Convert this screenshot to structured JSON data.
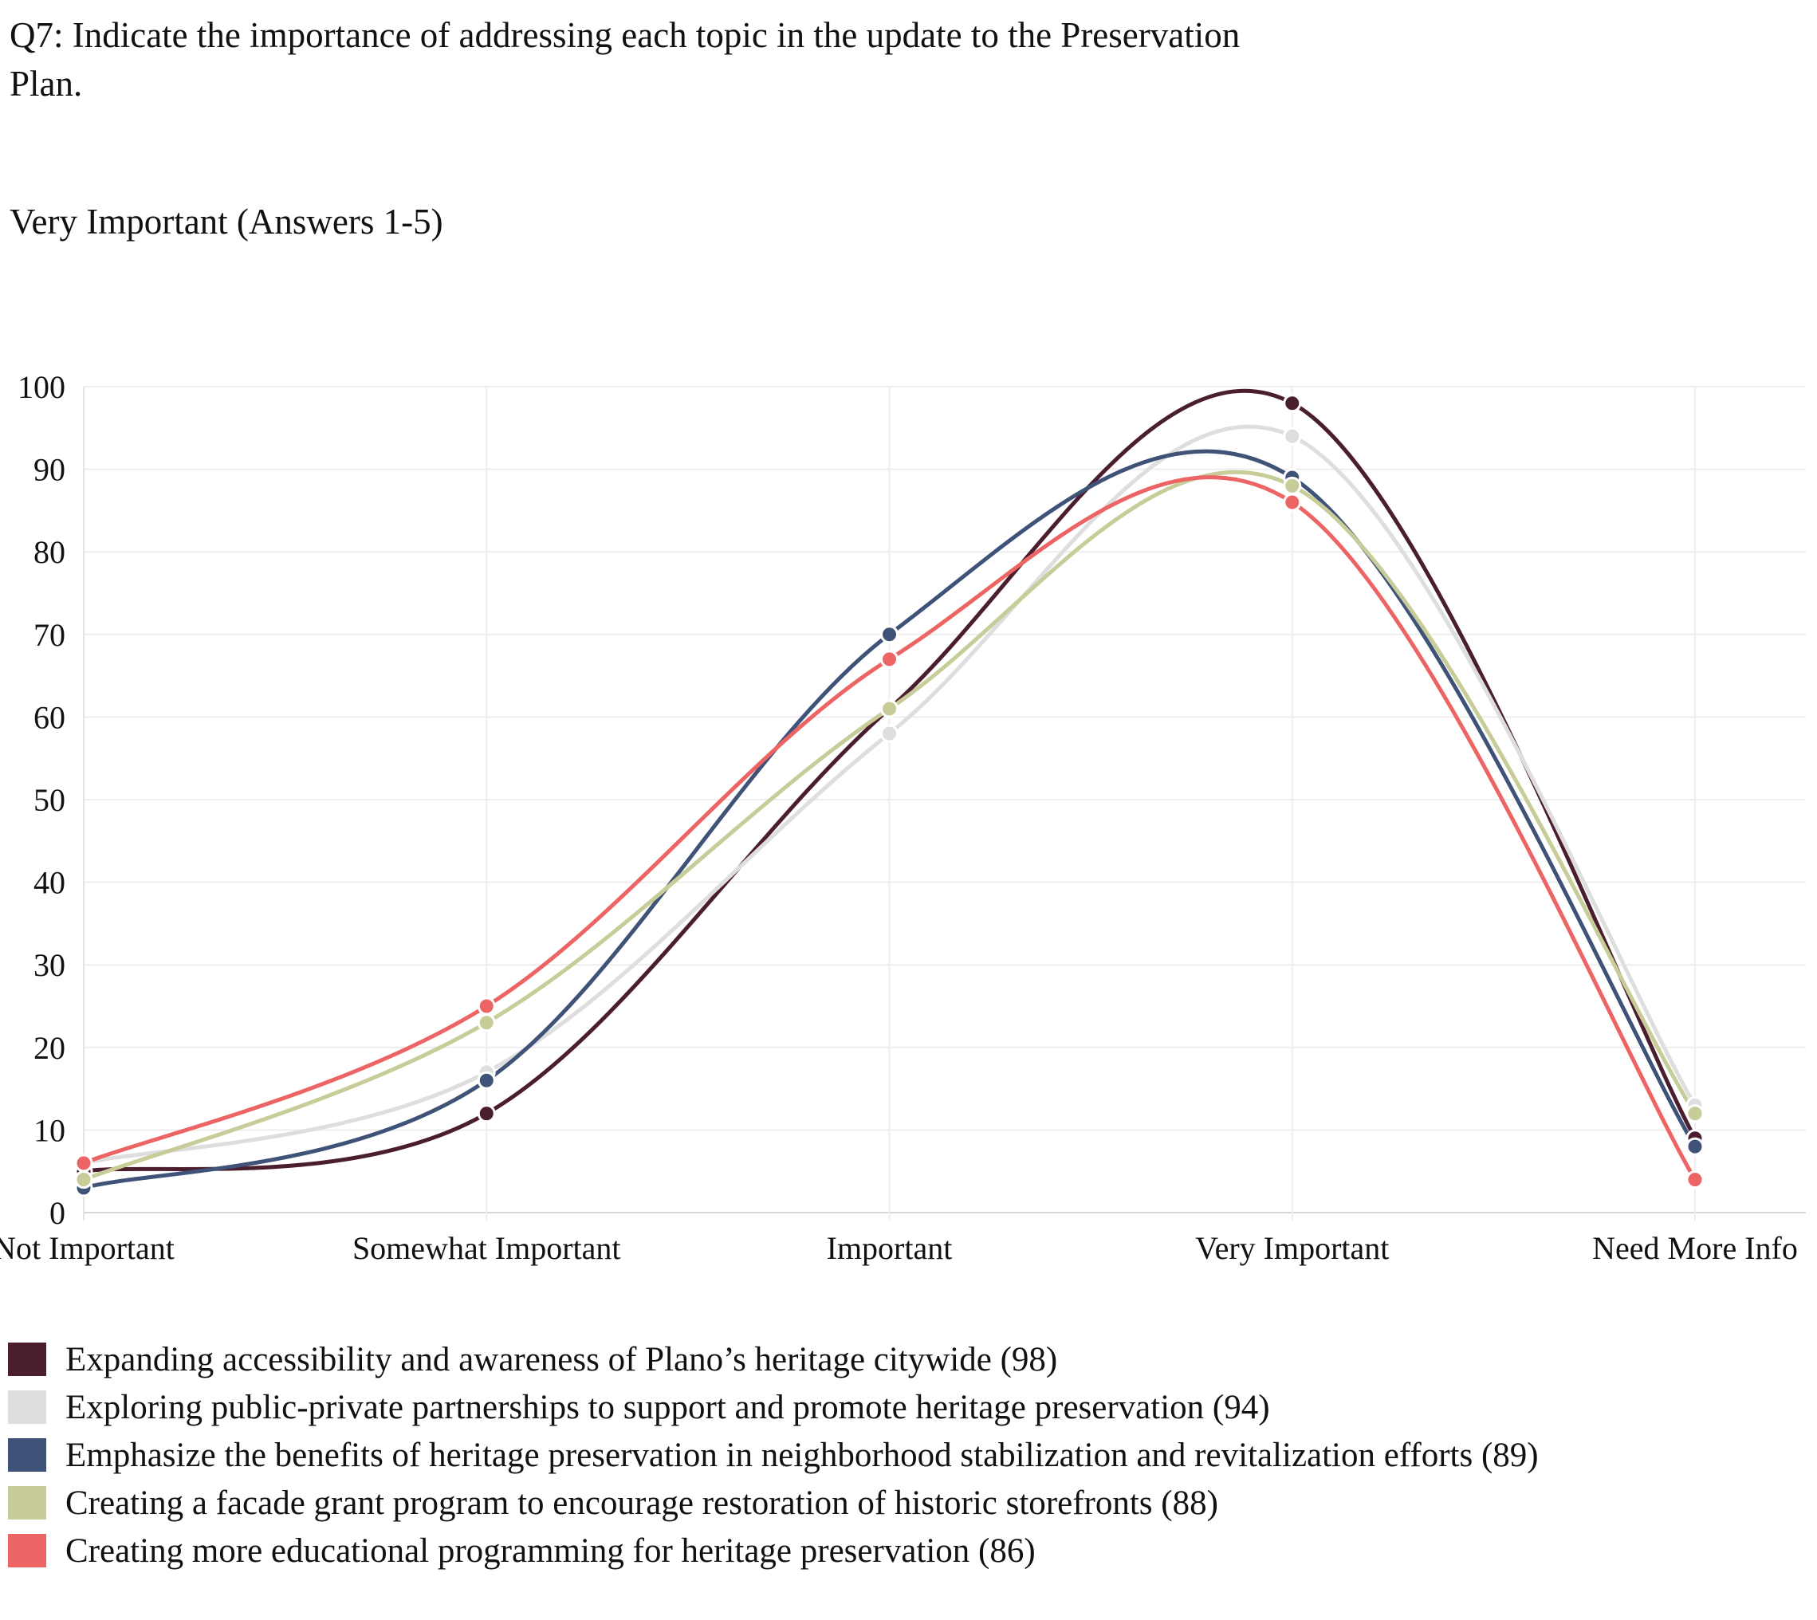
{
  "title": "Q7: Indicate the importance of addressing each topic in the update to the Preservation Plan.",
  "subtitle": "Very Important (Answers 1-5)",
  "chart_data": {
    "type": "line",
    "title": "Q7: Indicate the importance of addressing each topic in the update to the Preservation Plan.",
    "subtitle": "Very Important (Answers 1-5)",
    "categories": [
      "Not Important",
      "Somewhat Important",
      "Important",
      "Very Important",
      "Need More Info"
    ],
    "ylim": [
      0,
      100
    ],
    "yticks": [
      0,
      10,
      20,
      30,
      40,
      50,
      60,
      70,
      80,
      90,
      100
    ],
    "grid": true,
    "legend_position": "bottom-left",
    "series": [
      {
        "name": "Expanding accessibility and awareness of Plano’s heritage citywide (98)",
        "color": "#4a1e2e",
        "values": [
          5,
          12,
          61,
          98,
          9
        ]
      },
      {
        "name": "Exploring public-private partnerships to support and promote heritage preservation (94)",
        "color": "#dedede",
        "values": [
          6,
          17,
          58,
          94,
          13
        ]
      },
      {
        "name": "Emphasize the benefits of heritage preservation in neighborhood stabilization and revitalization efforts (89)",
        "color": "#3f5278",
        "values": [
          3,
          16,
          70,
          89,
          8
        ]
      },
      {
        "name": "Creating a facade grant program to encourage restoration of historic storefronts (88)",
        "color": "#c8cc98",
        "values": [
          4,
          23,
          61,
          88,
          12
        ]
      },
      {
        "name": "Creating more educational programming for heritage preservation (86)",
        "color": "#ec6464",
        "values": [
          6,
          25,
          67,
          86,
          4
        ]
      }
    ]
  }
}
